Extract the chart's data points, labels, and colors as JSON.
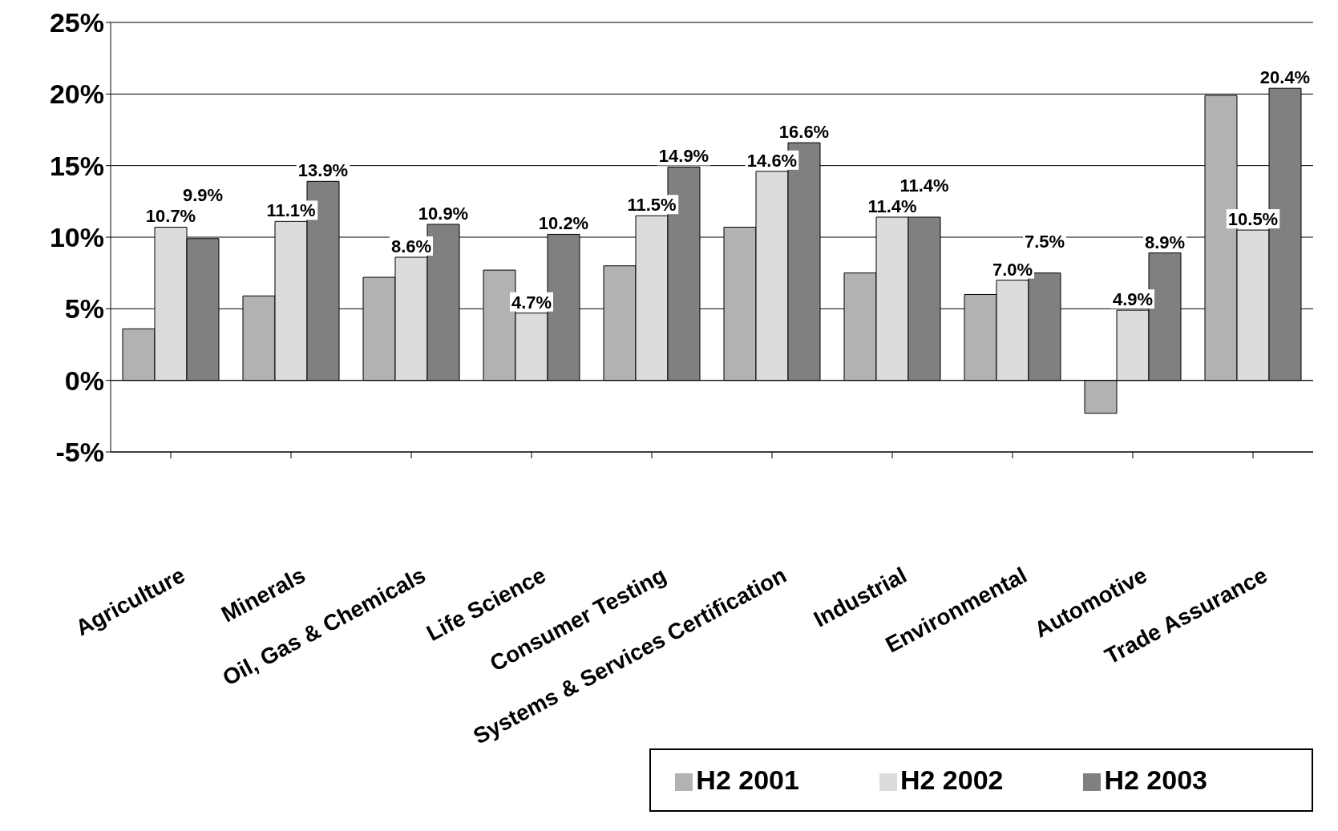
{
  "chart_data": {
    "type": "bar",
    "categories": [
      "Agriculture",
      "Minerals",
      "Oil, Gas & Chemicals",
      "Life Science",
      "Consumer Testing",
      "Systems & Services Certification",
      "Industrial",
      "Environmental",
      "Automotive",
      "Trade Assurance"
    ],
    "series": [
      {
        "name": "H2 2001",
        "color": "#b2b2b2",
        "values": [
          3.6,
          5.9,
          7.2,
          7.7,
          8.0,
          10.7,
          7.5,
          6.0,
          -2.3,
          19.9
        ]
      },
      {
        "name": "H2 2002",
        "color": "#dcdcdc",
        "values": [
          10.7,
          11.1,
          8.6,
          4.7,
          11.5,
          14.6,
          11.4,
          7.0,
          4.9,
          10.5
        ],
        "value_labels": [
          "10.7%",
          "11.1%",
          "8.6%",
          "4.7%",
          "11.5%",
          "14.6%",
          "11.4%",
          "7.0%",
          "4.9%",
          "10.5%"
        ]
      },
      {
        "name": "H2 2003",
        "color": "#808080",
        "values": [
          9.9,
          13.9,
          10.9,
          10.2,
          14.9,
          16.6,
          11.4,
          7.5,
          8.9,
          20.4
        ],
        "value_labels": [
          "9.9%",
          "13.9%",
          "10.9%",
          "10.2%",
          "14.9%",
          "16.6%",
          "11.4%",
          "7.5%",
          "8.9%",
          "20.4%"
        ]
      }
    ],
    "ylim": [
      -5,
      25
    ],
    "yticks": [
      {
        "value": -5,
        "label": "-5%"
      },
      {
        "value": 0,
        "label": "0%"
      },
      {
        "value": 5,
        "label": "5%"
      },
      {
        "value": 10,
        "label": "10%"
      },
      {
        "value": 15,
        "label": "15%"
      },
      {
        "value": 20,
        "label": "20%"
      },
      {
        "value": 25,
        "label": "25%"
      }
    ],
    "grid": "y",
    "legend": "bottom right"
  }
}
